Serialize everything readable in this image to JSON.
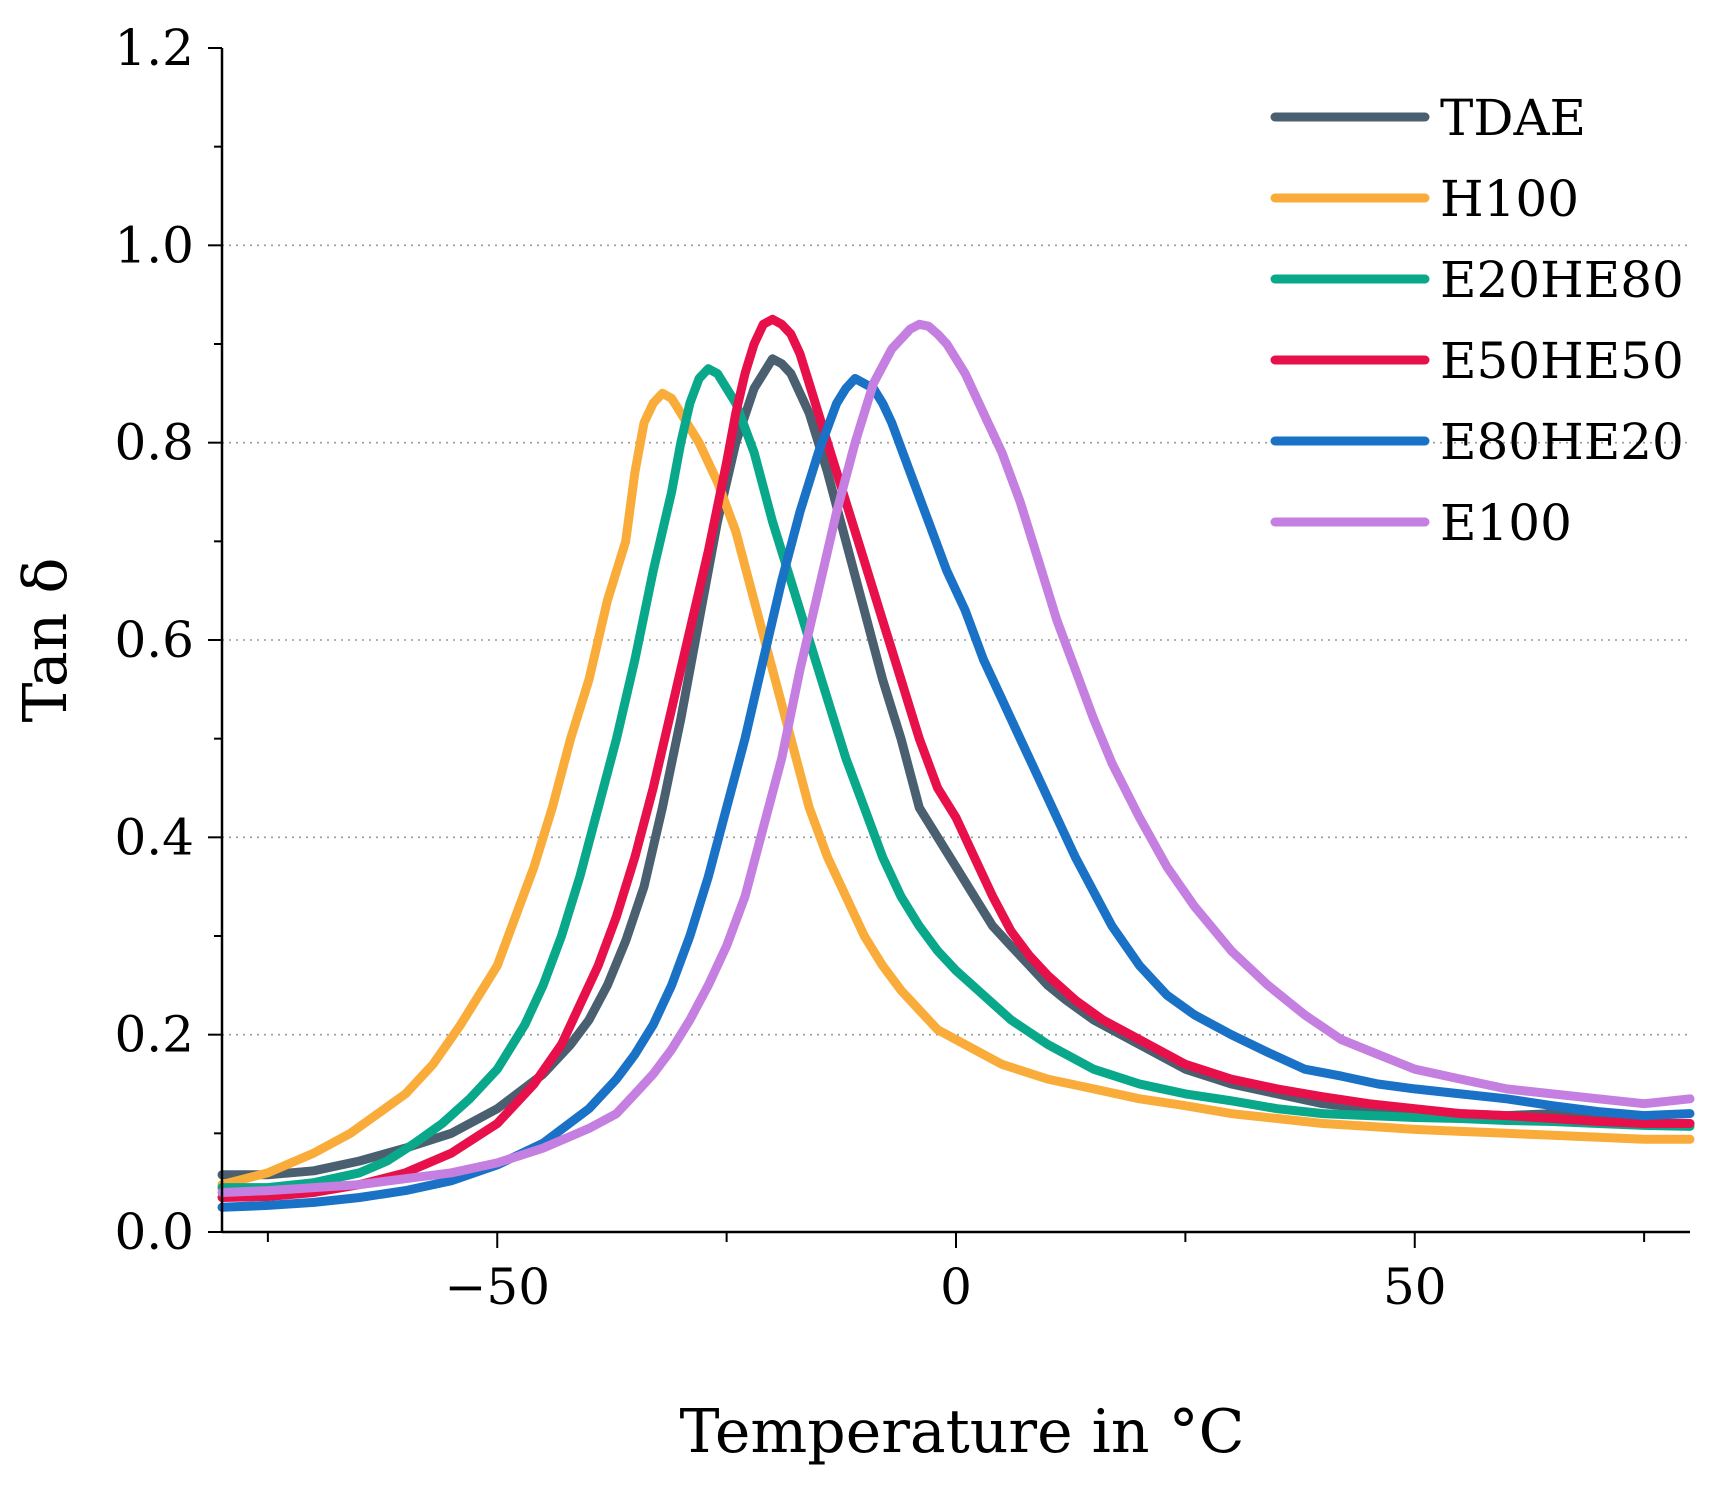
{
  "chart_data": {
    "type": "line",
    "title": "",
    "xlabel": "Temperature in °C",
    "ylabel": "Tan δ",
    "xlim": [
      -80,
      80
    ],
    "ylim": [
      0.0,
      1.2
    ],
    "x_ticks": [
      "−50",
      "0",
      "50"
    ],
    "y_ticks": [
      "0.0",
      "0.2",
      "0.4",
      "0.6",
      "0.8",
      "1.0",
      "1.2"
    ],
    "grid": "horizontal dotted at 0.2, 0.4, 0.6, 0.8, 1.0",
    "legend_position": "top-right",
    "series": [
      {
        "name": "TDAE",
        "color": "#4a6070",
        "x": [
          -80,
          -75,
          -70,
          -65,
          -60,
          -55,
          -50,
          -45,
          -42,
          -40,
          -38,
          -36,
          -34,
          -32,
          -30,
          -28,
          -26,
          -24,
          -22,
          -21,
          -20,
          -19,
          -18,
          -16,
          -14,
          -12,
          -10,
          -8,
          -6,
          -4,
          -2,
          0,
          2,
          4,
          6,
          8,
          10,
          12,
          15,
          20,
          25,
          30,
          35,
          40,
          45,
          50,
          55,
          60,
          65,
          70,
          75,
          80
        ],
        "y": [
          0.058,
          0.058,
          0.062,
          0.072,
          0.085,
          0.1,
          0.125,
          0.16,
          0.19,
          0.215,
          0.25,
          0.295,
          0.35,
          0.43,
          0.52,
          0.62,
          0.72,
          0.8,
          0.855,
          0.87,
          0.885,
          0.88,
          0.87,
          0.83,
          0.77,
          0.7,
          0.63,
          0.56,
          0.5,
          0.43,
          0.4,
          0.37,
          0.34,
          0.31,
          0.29,
          0.27,
          0.25,
          0.235,
          0.215,
          0.19,
          0.165,
          0.15,
          0.14,
          0.13,
          0.125,
          0.122,
          0.12,
          0.118,
          0.12,
          0.115,
          0.11,
          0.11
        ]
      },
      {
        "name": "H100",
        "color": "#f9ac3a",
        "x": [
          -80,
          -75,
          -70,
          -66,
          -63,
          -60,
          -57,
          -54,
          -52,
          -50,
          -48,
          -46,
          -44,
          -42,
          -40,
          -38,
          -36,
          -35,
          -34,
          -33,
          -32,
          -31,
          -30,
          -28,
          -26,
          -24,
          -22,
          -20,
          -18,
          -16,
          -14,
          -12,
          -10,
          -8,
          -6,
          -4,
          -2,
          0,
          2,
          5,
          10,
          15,
          20,
          25,
          30,
          35,
          40,
          45,
          50,
          55,
          60,
          65,
          70,
          75,
          80
        ],
        "y": [
          0.048,
          0.06,
          0.08,
          0.1,
          0.12,
          0.14,
          0.17,
          0.21,
          0.24,
          0.27,
          0.32,
          0.37,
          0.43,
          0.5,
          0.56,
          0.64,
          0.7,
          0.77,
          0.82,
          0.84,
          0.85,
          0.845,
          0.83,
          0.8,
          0.76,
          0.71,
          0.64,
          0.57,
          0.5,
          0.43,
          0.38,
          0.34,
          0.3,
          0.27,
          0.245,
          0.225,
          0.205,
          0.195,
          0.185,
          0.17,
          0.155,
          0.145,
          0.135,
          0.128,
          0.12,
          0.115,
          0.11,
          0.107,
          0.104,
          0.102,
          0.1,
          0.098,
          0.096,
          0.094,
          0.094
        ]
      },
      {
        "name": "E20HE80",
        "color": "#0aa88a",
        "x": [
          -80,
          -75,
          -70,
          -65,
          -62,
          -59,
          -56,
          -53,
          -50,
          -47,
          -45,
          -43,
          -41,
          -39,
          -37,
          -35,
          -33,
          -31,
          -30,
          -29,
          -28,
          -27,
          -26,
          -24,
          -22,
          -20,
          -18,
          -16,
          -14,
          -12,
          -10,
          -8,
          -6,
          -4,
          -2,
          0,
          3,
          6,
          10,
          15,
          20,
          25,
          30,
          35,
          40,
          45,
          50,
          55,
          60,
          65,
          70,
          75,
          80
        ],
        "y": [
          0.045,
          0.045,
          0.05,
          0.06,
          0.072,
          0.09,
          0.11,
          0.135,
          0.165,
          0.21,
          0.25,
          0.3,
          0.36,
          0.43,
          0.5,
          0.58,
          0.67,
          0.75,
          0.8,
          0.84,
          0.865,
          0.875,
          0.87,
          0.84,
          0.79,
          0.72,
          0.66,
          0.6,
          0.54,
          0.48,
          0.43,
          0.38,
          0.34,
          0.31,
          0.285,
          0.265,
          0.24,
          0.215,
          0.19,
          0.165,
          0.15,
          0.14,
          0.133,
          0.125,
          0.12,
          0.118,
          0.116,
          0.115,
          0.113,
          0.112,
          0.11,
          0.108,
          0.107
        ]
      },
      {
        "name": "E50HE50",
        "color": "#e8104a",
        "x": [
          -80,
          -75,
          -70,
          -65,
          -60,
          -55,
          -50,
          -46,
          -43,
          -41,
          -39,
          -37,
          -35,
          -33,
          -31,
          -29,
          -27,
          -25,
          -24,
          -23,
          -22,
          -21,
          -20,
          -19,
          -18,
          -17,
          -16,
          -14,
          -12,
          -10,
          -8,
          -6,
          -4,
          -2,
          0,
          2,
          4,
          6,
          8,
          10,
          13,
          16,
          20,
          25,
          30,
          35,
          40,
          45,
          50,
          55,
          60,
          65,
          70,
          75,
          80
        ],
        "y": [
          0.035,
          0.036,
          0.04,
          0.048,
          0.06,
          0.08,
          0.11,
          0.15,
          0.19,
          0.23,
          0.27,
          0.32,
          0.38,
          0.45,
          0.53,
          0.61,
          0.69,
          0.78,
          0.83,
          0.87,
          0.9,
          0.92,
          0.925,
          0.92,
          0.91,
          0.89,
          0.86,
          0.8,
          0.74,
          0.68,
          0.62,
          0.56,
          0.5,
          0.45,
          0.42,
          0.38,
          0.34,
          0.305,
          0.28,
          0.26,
          0.235,
          0.215,
          0.195,
          0.17,
          0.155,
          0.145,
          0.137,
          0.13,
          0.125,
          0.12,
          0.118,
          0.115,
          0.112,
          0.11,
          0.11
        ]
      },
      {
        "name": "E80HE20",
        "color": "#1a72c6",
        "x": [
          -80,
          -75,
          -70,
          -65,
          -60,
          -55,
          -50,
          -45,
          -40,
          -37,
          -35,
          -33,
          -31,
          -29,
          -27,
          -25,
          -23,
          -21,
          -19,
          -17,
          -15,
          -14,
          -13,
          -12,
          -11,
          -10,
          -9,
          -8,
          -7,
          -5,
          -3,
          -1,
          1,
          3,
          5,
          7,
          9,
          11,
          13,
          15,
          17,
          20,
          23,
          26,
          30,
          34,
          38,
          42,
          46,
          50,
          55,
          60,
          65,
          70,
          75,
          80
        ],
        "y": [
          0.025,
          0.027,
          0.03,
          0.035,
          0.042,
          0.052,
          0.068,
          0.09,
          0.125,
          0.155,
          0.18,
          0.21,
          0.25,
          0.3,
          0.36,
          0.43,
          0.5,
          0.58,
          0.66,
          0.73,
          0.79,
          0.815,
          0.84,
          0.855,
          0.865,
          0.86,
          0.855,
          0.84,
          0.82,
          0.77,
          0.72,
          0.67,
          0.63,
          0.58,
          0.54,
          0.5,
          0.46,
          0.42,
          0.38,
          0.345,
          0.31,
          0.27,
          0.24,
          0.22,
          0.2,
          0.182,
          0.165,
          0.158,
          0.15,
          0.145,
          0.14,
          0.135,
          0.128,
          0.122,
          0.118,
          0.12
        ]
      },
      {
        "name": "E100",
        "color": "#c47fe0",
        "x": [
          -80,
          -75,
          -70,
          -65,
          -60,
          -55,
          -50,
          -45,
          -40,
          -37,
          -35,
          -33,
          -31,
          -29,
          -27,
          -25,
          -23,
          -21,
          -19,
          -17,
          -15,
          -13,
          -11,
          -9,
          -7,
          -6,
          -5,
          -4,
          -3,
          -2,
          -1,
          0,
          1,
          3,
          5,
          7,
          9,
          11,
          13,
          15,
          17,
          20,
          23,
          26,
          30,
          34,
          38,
          42,
          46,
          50,
          55,
          60,
          65,
          70,
          75,
          80
        ],
        "y": [
          0.04,
          0.042,
          0.045,
          0.048,
          0.054,
          0.06,
          0.07,
          0.085,
          0.105,
          0.12,
          0.14,
          0.16,
          0.185,
          0.215,
          0.25,
          0.29,
          0.34,
          0.41,
          0.48,
          0.57,
          0.65,
          0.73,
          0.8,
          0.86,
          0.895,
          0.905,
          0.915,
          0.92,
          0.918,
          0.91,
          0.9,
          0.885,
          0.87,
          0.83,
          0.79,
          0.74,
          0.68,
          0.62,
          0.57,
          0.52,
          0.475,
          0.42,
          0.37,
          0.33,
          0.285,
          0.25,
          0.22,
          0.195,
          0.18,
          0.165,
          0.155,
          0.145,
          0.14,
          0.135,
          0.13,
          0.135
        ]
      }
    ]
  }
}
